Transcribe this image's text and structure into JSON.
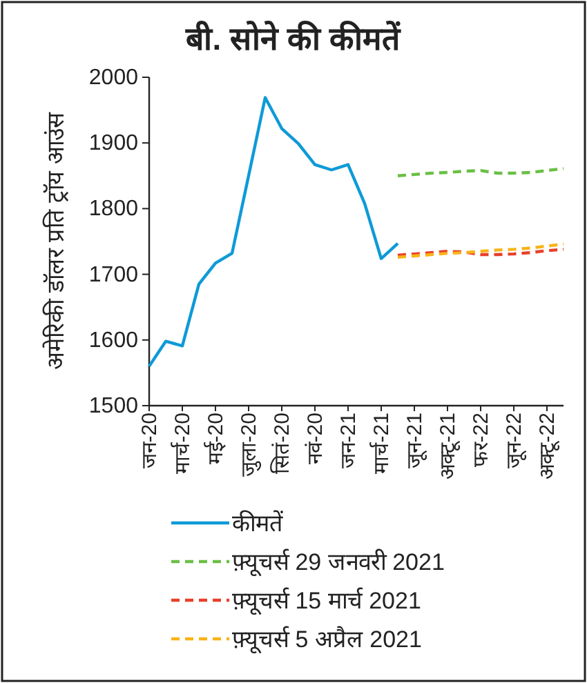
{
  "chart_data": {
    "type": "line",
    "title": "बी. सोने की कीमतें",
    "ylabel": "अमेरिकी डॉलर प्रति ट्रॉय आउंस",
    "categories": [
      "जन-20",
      null,
      "मार्च-20",
      null,
      "मई-20",
      null,
      "जुला-20",
      null,
      "सितं-20",
      null,
      "नवं-20",
      null,
      "जन-21",
      null,
      "मार्च-21",
      null,
      "जून-21",
      null,
      "अक्टू-21",
      null,
      "फर-22",
      null,
      "जून-22",
      null,
      "अक्टू-22",
      null
    ],
    "ylim": [
      1500,
      2000
    ],
    "yticks": [
      1500,
      1600,
      1700,
      1800,
      1900,
      2000
    ],
    "grid": false,
    "legend": "bottom",
    "marker": "none",
    "series": [
      {
        "name": "कीमतें",
        "color": "#0e9ad7",
        "line_style": "solid",
        "values": [
          1560,
          1598,
          1591,
          1685,
          1717,
          1732,
          1850,
          1969,
          1922,
          1899,
          1867,
          1859,
          1867,
          1808,
          1724,
          1747,
          null,
          null,
          null,
          null,
          null,
          null,
          null,
          null,
          null,
          null
        ]
      },
      {
        "name": "फ़्यूचर्स 29 जनवरी 2021",
        "color": "#6abf45",
        "line_style": "dashed",
        "values": [
          null,
          null,
          null,
          null,
          null,
          null,
          null,
          null,
          null,
          null,
          null,
          null,
          null,
          null,
          null,
          1850,
          1852,
          1854,
          1855,
          1857,
          1858,
          1854,
          1854,
          1855,
          1858,
          1861
        ]
      },
      {
        "name": "फ़्यूचर्स 15 मार्च 2021",
        "color": "#e8402a",
        "line_style": "dashed",
        "values": [
          null,
          null,
          null,
          null,
          null,
          null,
          null,
          null,
          null,
          null,
          null,
          null,
          null,
          null,
          null,
          1729,
          1731,
          1733,
          1735,
          1734,
          1730,
          1730,
          1731,
          1733,
          1736,
          1738
        ]
      },
      {
        "name": "फ़्यूचर्स 5 अप्रैल 2021",
        "color": "#f9b317",
        "line_style": "dashed",
        "values": [
          null,
          null,
          null,
          null,
          null,
          null,
          null,
          null,
          null,
          null,
          null,
          null,
          null,
          null,
          null,
          1726,
          1728,
          1730,
          1732,
          1733,
          1735,
          1737,
          1738,
          1740,
          1743,
          1746
        ]
      }
    ]
  }
}
